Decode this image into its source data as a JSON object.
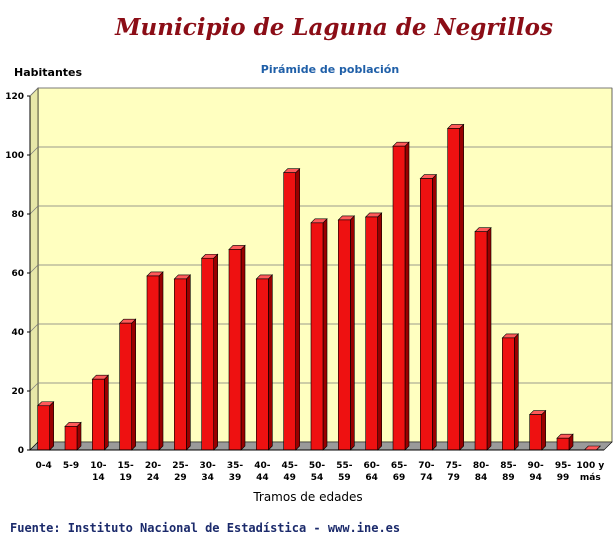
{
  "header": {
    "title": "Municipio de Laguna de Negrillos"
  },
  "footer": {
    "source": "Fuente: Instituto Nacional de Estadística - www.ine.es"
  },
  "chart_data": {
    "type": "bar",
    "title": "Pirámide de población",
    "xlabel": "Tramos de edades",
    "ylabel": "Habitantes",
    "ylim": [
      0,
      120
    ],
    "yticks": [
      0,
      20,
      40,
      60,
      80,
      100,
      120
    ],
    "grid": true,
    "categories": [
      [
        "0-4"
      ],
      [
        "5-9"
      ],
      [
        "10-",
        "14"
      ],
      [
        "15-",
        "19"
      ],
      [
        "20-",
        "24"
      ],
      [
        "25-",
        "29"
      ],
      [
        "30-",
        "34"
      ],
      [
        "35-",
        "39"
      ],
      [
        "40-",
        "44"
      ],
      [
        "45-",
        "49"
      ],
      [
        "50-",
        "54"
      ],
      [
        "55-",
        "59"
      ],
      [
        "60-",
        "64"
      ],
      [
        "65-",
        "69"
      ],
      [
        "70-",
        "74"
      ],
      [
        "75-",
        "79"
      ],
      [
        "80-",
        "84"
      ],
      [
        "85-",
        "89"
      ],
      [
        "90-",
        "94"
      ],
      [
        "95-",
        "99"
      ],
      [
        "100 y",
        "más"
      ]
    ],
    "values": [
      15,
      8,
      24,
      43,
      59,
      58,
      65,
      68,
      58,
      94,
      77,
      78,
      79,
      103,
      92,
      109,
      74,
      38,
      12,
      4,
      0
    ],
    "colors": {
      "bar_front": "#ee1111",
      "bar_side": "#990000",
      "bar_top": "#ff5a5a",
      "plot_bg": "#ffffc0",
      "floor": "#9a9a9a",
      "grid": "#7a7a7a"
    }
  }
}
